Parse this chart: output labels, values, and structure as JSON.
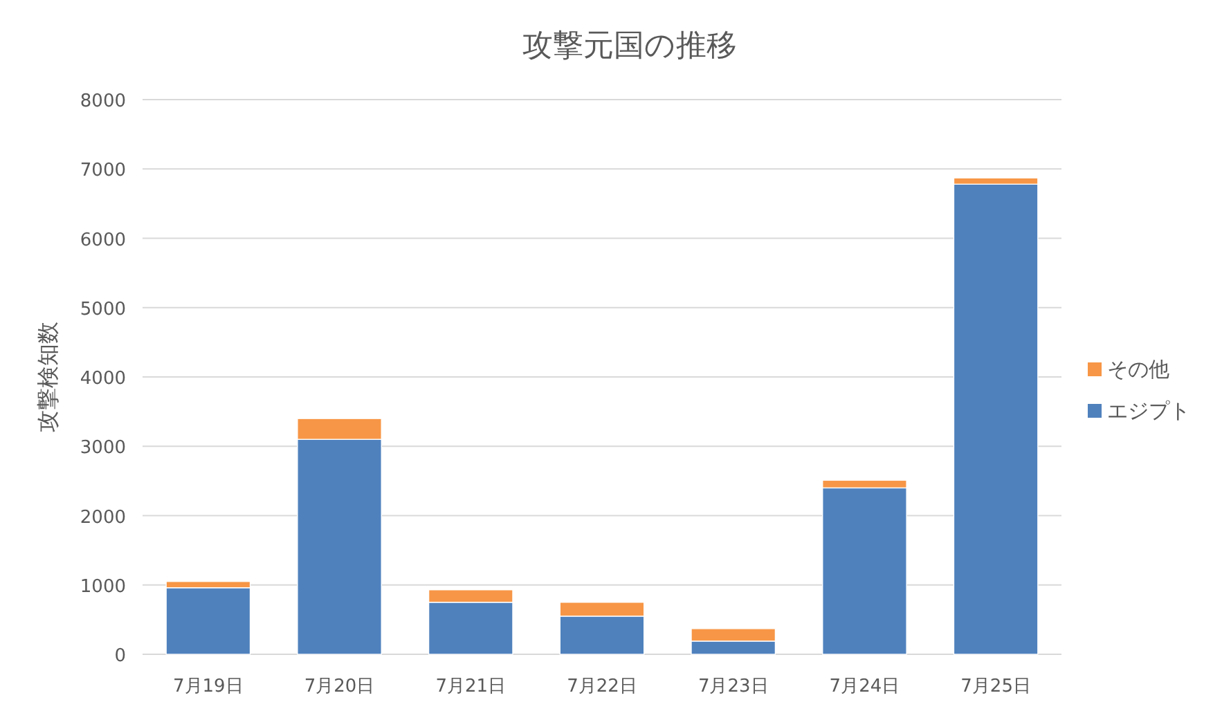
{
  "chart_data": {
    "type": "bar",
    "stacked": true,
    "title": "攻撃元国の推移",
    "ylabel": "攻撃検知数",
    "categories": [
      "7月19日",
      "7月20日",
      "7月21日",
      "7月22日",
      "7月23日",
      "7月24日",
      "7月25日"
    ],
    "series": [
      {
        "name": "エジプト",
        "color": "#4f81bd",
        "values": [
          960,
          3100,
          750,
          550,
          190,
          2400,
          6780
        ]
      },
      {
        "name": "その他",
        "color": "#f79646",
        "values": [
          90,
          300,
          180,
          200,
          180,
          110,
          90
        ]
      }
    ],
    "ylim": [
      0,
      8000
    ],
    "yticks": [
      0,
      1000,
      2000,
      3000,
      4000,
      5000,
      6000,
      7000,
      8000
    ],
    "grid": "y",
    "legend": "right"
  }
}
